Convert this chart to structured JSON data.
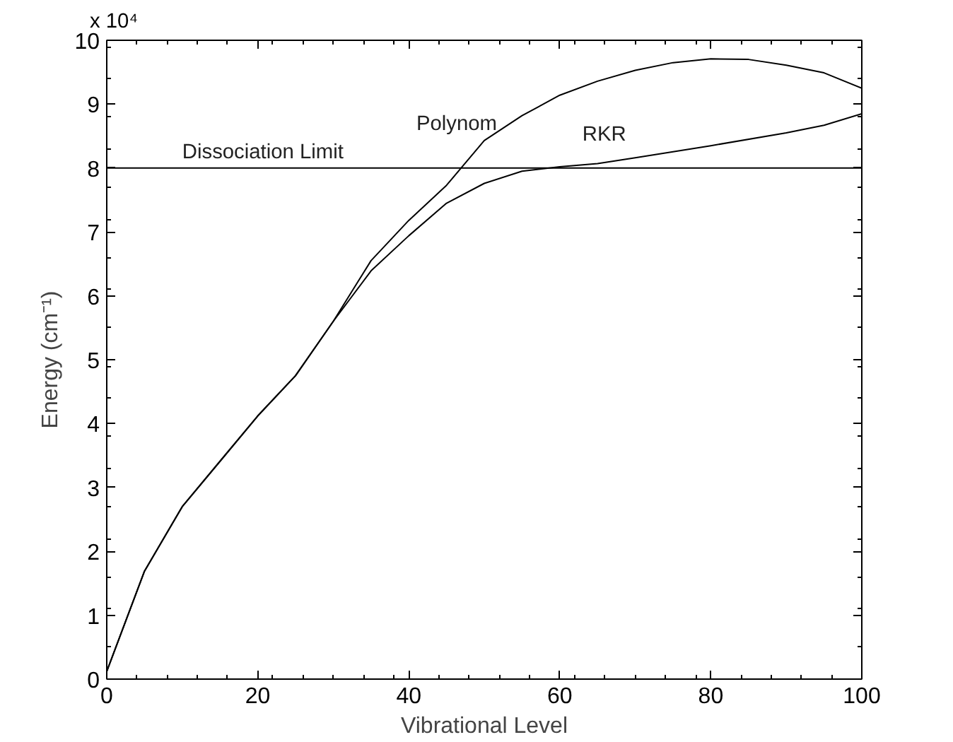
{
  "chart_data": {
    "type": "line",
    "xlabel": "Vibrational Level",
    "ylabel": "Energy (cm⁻¹)",
    "annotations": [
      "x 10⁴"
    ],
    "xlim": [
      0,
      100
    ],
    "ylim": [
      0,
      10
    ],
    "xticks": [
      0,
      20,
      40,
      60,
      80,
      100
    ],
    "yticks": [
      0,
      1,
      2,
      3,
      4,
      5,
      6,
      7,
      8,
      9,
      10
    ],
    "grid": false,
    "line_style": "solid",
    "ref_lines": [
      {
        "axis": "y",
        "value": 8,
        "label": "Dissociation Limit",
        "color": "#000000"
      }
    ],
    "series": [
      {
        "name": "Polynom",
        "color": "#000000",
        "x": [
          0,
          5,
          10,
          15,
          20,
          25,
          30,
          35,
          40,
          45,
          50,
          55,
          60,
          65,
          70,
          75,
          80,
          85,
          90,
          95,
          100
        ],
        "values": [
          0.12,
          1.69,
          2.7,
          3.41,
          4.12,
          4.75,
          5.6,
          6.55,
          7.18,
          7.73,
          8.43,
          8.82,
          9.14,
          9.36,
          9.53,
          9.65,
          9.71,
          9.7,
          9.61,
          9.49,
          9.25
        ]
      },
      {
        "name": "RKR",
        "color": "#000000",
        "x": [
          0,
          5,
          10,
          15,
          20,
          25,
          30,
          35,
          40,
          45,
          50,
          55,
          60,
          65,
          70,
          80,
          90,
          95,
          100
        ],
        "values": [
          0.12,
          1.69,
          2.7,
          3.41,
          4.12,
          4.75,
          5.6,
          6.39,
          6.94,
          7.45,
          7.76,
          7.95,
          8.02,
          8.07,
          8.16,
          8.35,
          8.55,
          8.67,
          8.85
        ]
      }
    ]
  }
}
